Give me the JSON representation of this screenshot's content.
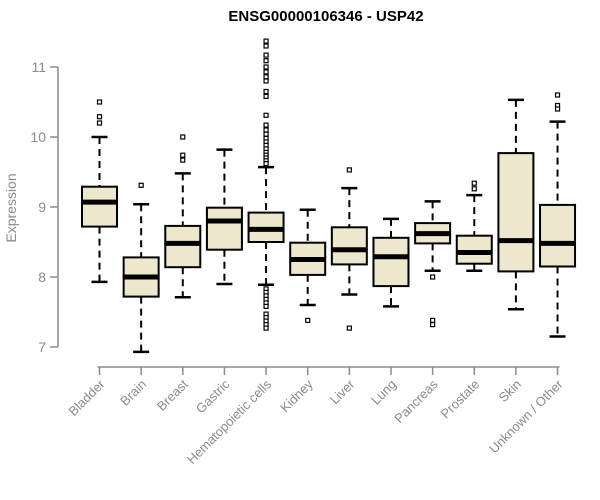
{
  "chart_data": {
    "type": "boxplot",
    "title": "ENSG00000106346 - USP42",
    "ylabel": "Expression",
    "xlabel": "",
    "ylim": [
      6.8,
      11.45
    ],
    "yticks": [
      7,
      8,
      9,
      10,
      11
    ],
    "grid": false,
    "legend": "none",
    "colors": {
      "box_fill": "#EDE7CD",
      "box_stroke": "#000000",
      "median": "#000000",
      "whisker": "#000000",
      "axis": "#8b8b8b",
      "tick_text": "#8b8b8b",
      "title_text": "#000000",
      "background": "#ffffff"
    },
    "categories": [
      "Bladder",
      "Brain",
      "Breast",
      "Gastric",
      "Hematopoietic cells",
      "Kidney",
      "Liver",
      "Lung",
      "Pancreas",
      "Prostate",
      "Skin",
      "Unknown / Other"
    ],
    "series": [
      {
        "name": "Bladder",
        "low": 7.93,
        "q1": 8.72,
        "median": 9.07,
        "q3": 9.29,
        "high": 10.0,
        "outliers": [
          10.5,
          10.29,
          10.2
        ]
      },
      {
        "name": "Brain",
        "low": 6.93,
        "q1": 7.72,
        "median": 8.0,
        "q3": 8.28,
        "high": 9.04,
        "outliers": [
          9.31
        ]
      },
      {
        "name": "Breast",
        "low": 7.71,
        "q1": 8.14,
        "median": 8.48,
        "q3": 8.73,
        "high": 9.48,
        "outliers": [
          10.0,
          9.74,
          9.67
        ]
      },
      {
        "name": "Gastric",
        "low": 7.9,
        "q1": 8.39,
        "median": 8.8,
        "q3": 8.99,
        "high": 9.82,
        "outliers": []
      },
      {
        "name": "Hematopoietic cells",
        "low": 7.89,
        "q1": 8.5,
        "median": 8.68,
        "q3": 8.92,
        "high": 9.57,
        "outliers": [
          11.37,
          11.3,
          11.17,
          11.09,
          11.0,
          10.93,
          10.86,
          10.8,
          10.65,
          10.58,
          10.31,
          10.17,
          10.1,
          10.04,
          9.98,
          9.93,
          9.88,
          9.83,
          9.78,
          9.74,
          9.7,
          9.66,
          9.62,
          7.83,
          7.78,
          7.73,
          7.68,
          7.63,
          7.58,
          7.47,
          7.42,
          7.37,
          7.32,
          7.27
        ]
      },
      {
        "name": "Kidney",
        "low": 7.6,
        "q1": 8.03,
        "median": 8.25,
        "q3": 8.49,
        "high": 8.96,
        "outliers": [
          7.38
        ]
      },
      {
        "name": "Liver",
        "low": 7.75,
        "q1": 8.18,
        "median": 8.39,
        "q3": 8.71,
        "high": 9.27,
        "outliers": [
          9.53,
          7.27
        ]
      },
      {
        "name": "Lung",
        "low": 7.58,
        "q1": 7.87,
        "median": 8.29,
        "q3": 8.56,
        "high": 8.83,
        "outliers": []
      },
      {
        "name": "Pancreas",
        "low": 8.09,
        "q1": 8.48,
        "median": 8.62,
        "q3": 8.77,
        "high": 9.08,
        "outliers": [
          8.0,
          7.38,
          7.32
        ]
      },
      {
        "name": "Prostate",
        "low": 8.09,
        "q1": 8.19,
        "median": 8.35,
        "q3": 8.59,
        "high": 9.17,
        "outliers": [
          9.34,
          9.26
        ]
      },
      {
        "name": "Skin",
        "low": 7.54,
        "q1": 8.08,
        "median": 8.52,
        "q3": 9.77,
        "high": 10.53,
        "outliers": []
      },
      {
        "name": "Unknown / Other",
        "low": 7.15,
        "q1": 8.15,
        "median": 8.48,
        "q3": 9.03,
        "high": 10.22,
        "outliers": [
          10.6,
          10.45,
          10.4
        ]
      }
    ]
  }
}
